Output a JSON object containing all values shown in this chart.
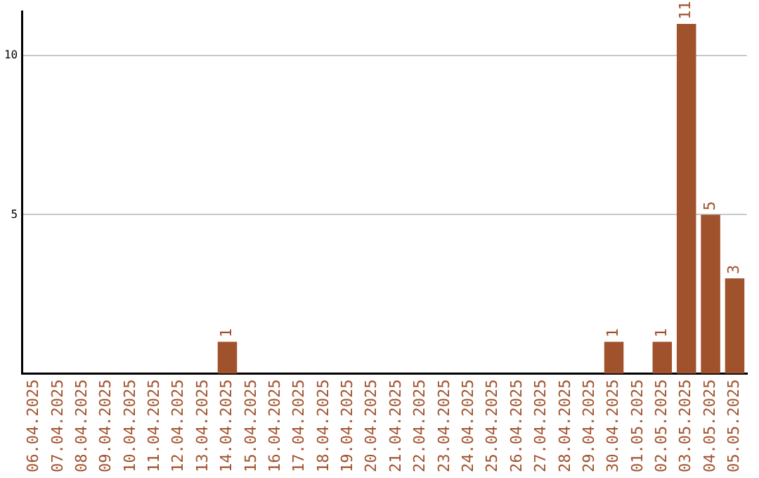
{
  "chart_data": {
    "type": "bar",
    "categories": [
      "06.04.2025",
      "07.04.2025",
      "08.04.2025",
      "09.04.2025",
      "10.04.2025",
      "11.04.2025",
      "12.04.2025",
      "13.04.2025",
      "14.04.2025",
      "15.04.2025",
      "16.04.2025",
      "17.04.2025",
      "18.04.2025",
      "19.04.2025",
      "20.04.2025",
      "21.04.2025",
      "22.04.2025",
      "23.04.2025",
      "24.04.2025",
      "25.04.2025",
      "26.04.2025",
      "27.04.2025",
      "28.04.2025",
      "29.04.2025",
      "30.04.2025",
      "01.05.2025",
      "02.05.2025",
      "03.05.2025",
      "04.05.2025",
      "05.05.2025"
    ],
    "values": [
      0,
      0,
      0,
      0,
      0,
      0,
      0,
      0,
      1,
      0,
      0,
      0,
      0,
      0,
      0,
      0,
      0,
      0,
      0,
      0,
      0,
      0,
      0,
      0,
      1,
      0,
      1,
      11,
      5,
      3
    ],
    "value_labels": [
      null,
      null,
      null,
      null,
      null,
      null,
      null,
      null,
      "1",
      null,
      null,
      null,
      null,
      null,
      null,
      null,
      null,
      null,
      null,
      null,
      null,
      null,
      null,
      null,
      "1",
      null,
      "1",
      "11",
      "5",
      "3"
    ],
    "color": "#a0522d",
    "ylim": [
      0,
      11.4
    ],
    "yticks": [
      5,
      10
    ],
    "grid": "y",
    "legend": false
  }
}
